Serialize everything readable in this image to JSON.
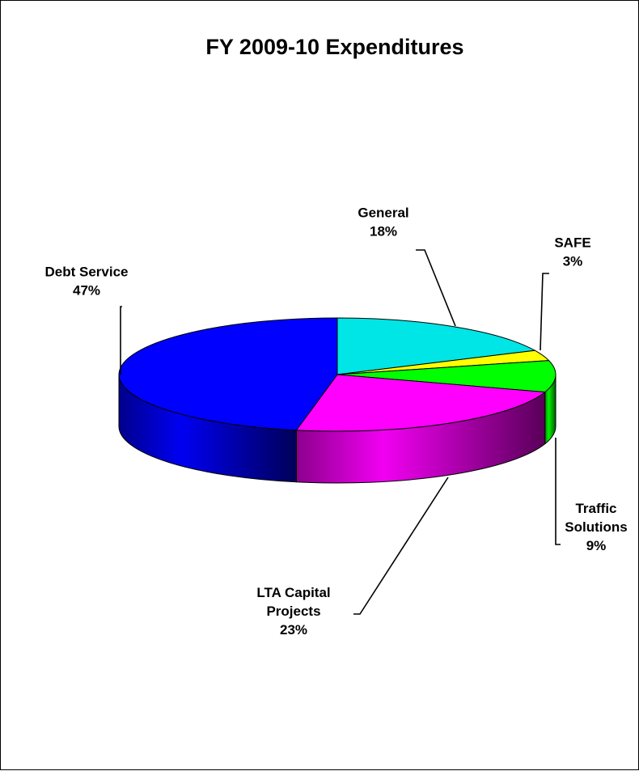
{
  "chart_data": {
    "type": "pie",
    "title": "FY 2009-10 Expenditures",
    "slices": [
      {
        "name": "General",
        "value": 18,
        "color": "#00e5e5",
        "label_lines": [
          "General",
          "18%"
        ]
      },
      {
        "name": "SAFE",
        "value": 3,
        "color": "#ffff00",
        "label_lines": [
          "SAFE",
          "3%"
        ]
      },
      {
        "name": "Traffic Solutions",
        "value": 9,
        "color": "#00ff00",
        "label_lines": [
          "Traffic",
          "Solutions",
          "9%"
        ]
      },
      {
        "name": "LTA Capital Projects",
        "value": 23,
        "color": "#ff00ff",
        "label_lines": [
          "LTA Capital",
          "Projects",
          "23%"
        ]
      },
      {
        "name": "Debt Service",
        "value": 47,
        "color": "#0000ff",
        "label_lines": [
          "Debt Service",
          "47%"
        ]
      }
    ],
    "legend": "none",
    "style": "3d"
  }
}
